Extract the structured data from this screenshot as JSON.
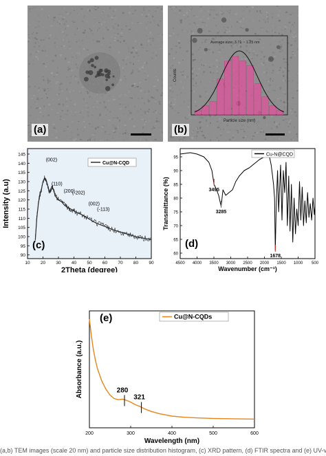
{
  "panels": {
    "a": {
      "label": "(a)"
    },
    "b": {
      "label": "(b)",
      "inset_title": "Average size: 3.71 ~ 1.25 nm",
      "inset_ylabel": "Counts",
      "inset_xlabel": "Particle size (nm)"
    },
    "c": {
      "label": "(c)"
    },
    "d": {
      "label": "(d)"
    },
    "e": {
      "label": "(e)"
    }
  },
  "colors": {
    "xrd_line": "#2a2a2a",
    "ftir_line": "#000000",
    "ftir_marker": "#d9302c",
    "uv_line": "#e8841a",
    "hist_bar": "#e0529c"
  },
  "chart_data": [
    {
      "id": "c",
      "type": "line",
      "title": "",
      "xlabel": "2Theta (degree)",
      "ylabel": "Intensity (a.u)",
      "legend": "Cu@N-CQD",
      "legend_position": "top-right",
      "xlim": [
        10,
        90
      ],
      "xticks": [
        10,
        20,
        30,
        40,
        50,
        60,
        70,
        80,
        90
      ],
      "yticks": [
        90,
        95,
        100,
        105,
        110,
        115,
        120,
        125,
        130,
        135,
        140,
        145
      ],
      "ylim": [
        88,
        148
      ],
      "x": [
        15,
        16,
        17,
        18,
        19,
        20,
        21,
        22,
        23,
        24,
        25,
        26,
        27,
        28,
        30,
        32,
        34,
        36,
        38,
        40,
        42,
        45,
        48,
        51,
        54,
        57,
        60,
        63,
        66,
        70,
        74,
        78,
        82,
        86,
        90
      ],
      "y": [
        98,
        110,
        118,
        123,
        126,
        130,
        132,
        131,
        128,
        124,
        125,
        127,
        125,
        122,
        120,
        119,
        117,
        116,
        115,
        114,
        113,
        112,
        110.5,
        109,
        107.5,
        106.5,
        105.5,
        104.5,
        103.5,
        102.5,
        101.5,
        100.5,
        99.5,
        99,
        98.5
      ],
      "annotations": [
        {
          "text": "(002)",
          "x": 25.5,
          "y": 141
        },
        {
          "text": "(110)",
          "x": 29,
          "y": 128
        },
        {
          "text": "(200)",
          "x": 37,
          "y": 124
        },
        {
          "text": "(-202)",
          "x": 43,
          "y": 123
        },
        {
          "text": "(002)",
          "x": 53,
          "y": 117
        },
        {
          "text": "(-113)",
          "x": 59,
          "y": 114
        }
      ]
    },
    {
      "id": "d",
      "type": "line",
      "title": "",
      "xlabel": "Wavenumber (cm⁻¹)",
      "ylabel": "Transmittance (%)",
      "legend": "Cu-N@CQD",
      "legend_position": "top-right",
      "xlim": [
        4500,
        500
      ],
      "xticks": [
        4500,
        4000,
        3500,
        3000,
        2500,
        2000,
        1500,
        1000,
        500
      ],
      "yticks": [
        60,
        65,
        70,
        75,
        80,
        85,
        90,
        95
      ],
      "ylim": [
        58,
        98
      ],
      "x": [
        4500,
        4200,
        4000,
        3800,
        3650,
        3560,
        3495,
        3420,
        3360,
        3285,
        3230,
        3150,
        3050,
        2950,
        2850,
        2750,
        2600,
        2450,
        2300,
        2150,
        2000,
        1900,
        1850,
        1800,
        1760,
        1730,
        1700,
        1678,
        1650,
        1610,
        1580,
        1520,
        1480,
        1440,
        1400,
        1360,
        1320,
        1280,
        1240,
        1200,
        1160,
        1120,
        1080,
        1040,
        1000,
        960,
        920,
        880,
        840,
        800,
        760,
        720,
        680,
        640,
        600,
        560,
        520,
        500
      ],
      "y": [
        96,
        96.5,
        96,
        95,
        93,
        90,
        85,
        83,
        81,
        77,
        83,
        81,
        82,
        83,
        86,
        88,
        90,
        91,
        92.5,
        94,
        95,
        95.5,
        95,
        92,
        88,
        85,
        80,
        61,
        78,
        90,
        75,
        92,
        72,
        90,
        82,
        93,
        70,
        88,
        68,
        85,
        64,
        80,
        67,
        76,
        70,
        86,
        72,
        84,
        70,
        79,
        71,
        82,
        73,
        78,
        72,
        80,
        74,
        77
      ],
      "annotations": [
        {
          "text": "3495",
          "x": 3495,
          "y": 85
        },
        {
          "text": "3285",
          "x": 3285,
          "y": 77
        },
        {
          "text": "1678",
          "x": 1678,
          "y": 61
        }
      ]
    },
    {
      "id": "e",
      "type": "line",
      "title": "",
      "xlabel": "Wavelength (nm)",
      "ylabel": "Absorbance (a.u.)",
      "legend": "Cu@N-CQDs",
      "legend_position": "top-right",
      "xlim": [
        200,
        600
      ],
      "xticks": [
        200,
        300,
        400,
        500,
        600
      ],
      "ylim": [
        0,
        1.0
      ],
      "x": [
        200,
        205,
        210,
        215,
        220,
        225,
        230,
        240,
        250,
        260,
        270,
        280,
        290,
        300,
        310,
        321,
        335,
        350,
        370,
        400,
        430,
        460,
        500,
        550,
        600
      ],
      "y": [
        0.93,
        0.78,
        0.66,
        0.57,
        0.5,
        0.45,
        0.4,
        0.33,
        0.28,
        0.25,
        0.24,
        0.245,
        0.235,
        0.22,
        0.2,
        0.185,
        0.16,
        0.14,
        0.12,
        0.1,
        0.09,
        0.085,
        0.08,
        0.077,
        0.075
      ],
      "annotations": [
        {
          "text": "280",
          "x": 280,
          "y": 0.245
        },
        {
          "text": "321",
          "x": 321,
          "y": 0.185
        }
      ]
    },
    {
      "id": "b-inset",
      "type": "bar",
      "title": "Average size: 3.71 ~ 1.25 nm",
      "xlabel": "Particle size (nm)",
      "ylabel": "Counts",
      "categories": [
        "1",
        "1.5",
        "2",
        "2.5",
        "3",
        "3.5",
        "4",
        "4.5",
        "5",
        "5.5",
        "6",
        "6.5"
      ],
      "values": [
        1,
        2,
        3,
        8,
        12,
        13,
        12,
        11,
        7,
        4,
        2,
        1
      ],
      "fit": "gaussian"
    }
  ],
  "caption": "(a,b) TEM images (scale 20 nm) and particle size distribution histogram, (c) XRD pattern, (d) FTIR spectra and (e) UV-vis"
}
